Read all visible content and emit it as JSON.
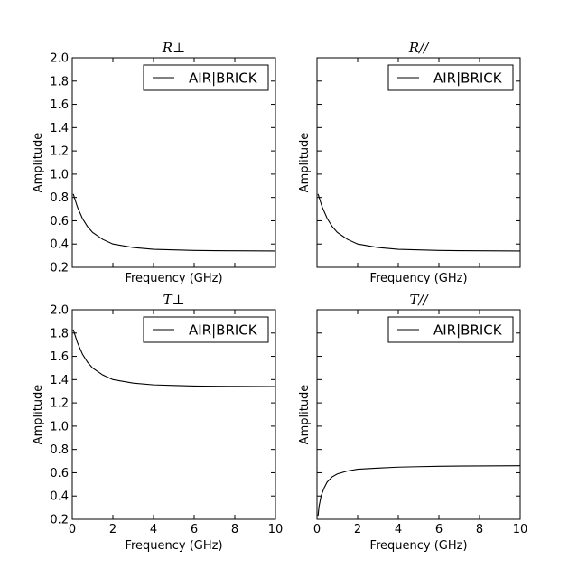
{
  "chart_data": [
    {
      "type": "line",
      "title": "R⊥",
      "xlabel": "Frequency (GHz)",
      "ylabel": "Amplitude",
      "xlim": [
        0,
        10
      ],
      "ylim": [
        0.2,
        2.0
      ],
      "xticks": [],
      "yticks": [
        "0.2",
        "0.4",
        "0.6",
        "0.8",
        "1.0",
        "1.2",
        "1.4",
        "1.6",
        "1.8",
        "2.0"
      ],
      "legend": "upper right",
      "grid": false,
      "series": [
        {
          "name": "AIR|BRICK",
          "color": "#000000",
          "x": [
            0.05,
            0.25,
            0.5,
            0.75,
            1.0,
            1.5,
            2.0,
            3.0,
            4.0,
            5.0,
            6.0,
            7.0,
            8.0,
            9.0,
            10.0
          ],
          "y": [
            0.83,
            0.72,
            0.62,
            0.55,
            0.5,
            0.44,
            0.4,
            0.37,
            0.355,
            0.35,
            0.345,
            0.343,
            0.342,
            0.341,
            0.34
          ]
        }
      ]
    },
    {
      "type": "line",
      "title": "R//",
      "xlabel": "Frequency (GHz)",
      "ylabel": "Amplitude",
      "xlim": [
        0,
        10
      ],
      "ylim": [
        0.2,
        2.0
      ],
      "xticks": [],
      "yticks": [],
      "legend": "upper right",
      "grid": false,
      "series": [
        {
          "name": "AIR|BRICK",
          "color": "#000000",
          "x": [
            0.05,
            0.25,
            0.5,
            0.75,
            1.0,
            1.5,
            2.0,
            3.0,
            4.0,
            5.0,
            6.0,
            7.0,
            8.0,
            9.0,
            10.0
          ],
          "y": [
            0.83,
            0.72,
            0.62,
            0.55,
            0.5,
            0.44,
            0.4,
            0.37,
            0.355,
            0.35,
            0.345,
            0.343,
            0.342,
            0.341,
            0.34
          ]
        }
      ]
    },
    {
      "type": "line",
      "title": "T⊥",
      "xlabel": "Frequency (GHz)",
      "ylabel": "Amplitude",
      "xlim": [
        0,
        10
      ],
      "ylim": [
        0.2,
        2.0
      ],
      "xticks": [
        "0",
        "2",
        "4",
        "6",
        "8",
        "10"
      ],
      "yticks": [
        "0.2",
        "0.4",
        "0.6",
        "0.8",
        "1.0",
        "1.2",
        "1.4",
        "1.6",
        "1.8",
        "2.0"
      ],
      "legend": "upper right",
      "grid": false,
      "series": [
        {
          "name": "AIR|BRICK",
          "color": "#000000",
          "x": [
            0.05,
            0.25,
            0.5,
            0.75,
            1.0,
            1.5,
            2.0,
            3.0,
            4.0,
            5.0,
            6.0,
            7.0,
            8.0,
            9.0,
            10.0
          ],
          "y": [
            1.83,
            1.72,
            1.62,
            1.55,
            1.5,
            1.44,
            1.4,
            1.37,
            1.355,
            1.35,
            1.345,
            1.343,
            1.342,
            1.341,
            1.34
          ]
        }
      ]
    },
    {
      "type": "line",
      "title": "T//",
      "xlabel": "Frequency (GHz)",
      "ylabel": "Amplitude",
      "xlim": [
        0,
        10
      ],
      "ylim": [
        0.2,
        2.0
      ],
      "xticks": [
        "0",
        "2",
        "4",
        "6",
        "8",
        "10"
      ],
      "yticks": [],
      "legend": "upper right",
      "grid": false,
      "series": [
        {
          "name": "AIR|BRICK",
          "color": "#000000",
          "x": [
            0.05,
            0.1,
            0.2,
            0.35,
            0.5,
            0.75,
            1.0,
            1.5,
            2.0,
            3.0,
            4.0,
            5.0,
            6.0,
            7.0,
            8.0,
            9.0,
            10.0
          ],
          "y": [
            0.23,
            0.31,
            0.4,
            0.47,
            0.52,
            0.565,
            0.59,
            0.615,
            0.63,
            0.64,
            0.648,
            0.652,
            0.655,
            0.657,
            0.658,
            0.659,
            0.66
          ]
        }
      ]
    }
  ]
}
